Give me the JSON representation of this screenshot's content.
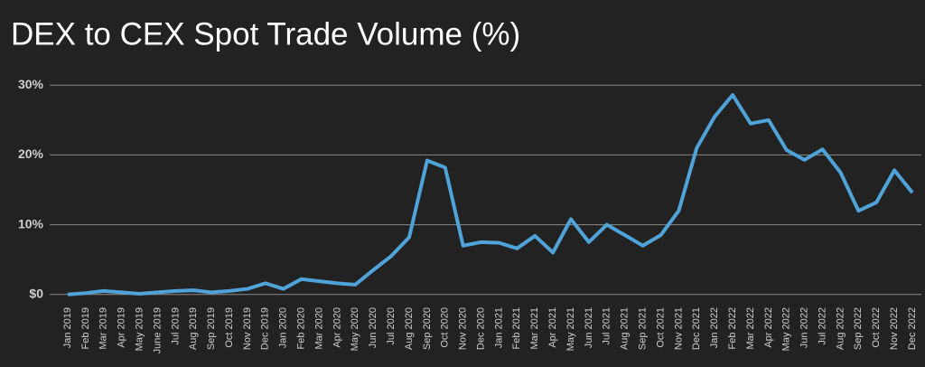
{
  "chart_data": {
    "type": "line",
    "title": "DEX to CEX Spot Trade Volume (%)",
    "categories": [
      "Jan 2019",
      "Feb 2019",
      "Mar 2019",
      "Apr 2019",
      "May 2019",
      "June 2019",
      "Jul 2019",
      "Aug 2019",
      "Sep 2019",
      "Oct 2019",
      "Nov 2019",
      "Dec 2019",
      "Jan 2020",
      "Feb 2020",
      "Mar 2020",
      "Apr 2020",
      "May 2020",
      "Jun 2020",
      "Jul 2020",
      "Aug 2020",
      "Sep 2020",
      "Oct 2020",
      "Nov 2020",
      "Dec 2020",
      "Jan 2021",
      "Feb 2021",
      "Mar 2021",
      "Apr 2021",
      "May 2021",
      "Jun 2021",
      "Jul 2021",
      "Aug 2021",
      "Sep 2021",
      "Oct 2021",
      "Nov 2021",
      "Dec 2021",
      "Jan 2022",
      "Feb 2022",
      "Mar 2022",
      "Apr 2022",
      "May 2022",
      "Jun 2022",
      "Jul 2022",
      "Aug 2022",
      "Sep 2022",
      "Oct 2022",
      "Nov 2022",
      "Dec 2022"
    ],
    "series": [
      {
        "name": "DEX to CEX",
        "color": "#4fa3d9",
        "values": [
          0,
          0.2,
          0.5,
          0.3,
          0.1,
          0.3,
          0.5,
          0.6,
          0.3,
          0.5,
          0.8,
          1.6,
          0.8,
          2.2,
          1.9,
          1.6,
          1.4,
          3.5,
          5.5,
          8.2,
          19.2,
          18.2,
          7,
          7.5,
          7.4,
          6.6,
          8.4,
          6,
          10.8,
          7.5,
          10,
          8.5,
          7,
          8.5,
          12,
          21,
          25.5,
          28.6,
          24.5,
          25,
          20.7,
          19.3,
          20.8,
          17.5,
          12,
          13.2,
          17.8,
          14.6
        ]
      }
    ],
    "ylim": [
      -1.2,
      31.2
    ],
    "yticks": [
      {
        "value": 0,
        "label": "$0"
      },
      {
        "value": 10,
        "label": "10%"
      },
      {
        "value": 20,
        "label": "20%"
      },
      {
        "value": 30,
        "label": "30%"
      }
    ],
    "grid": true
  }
}
